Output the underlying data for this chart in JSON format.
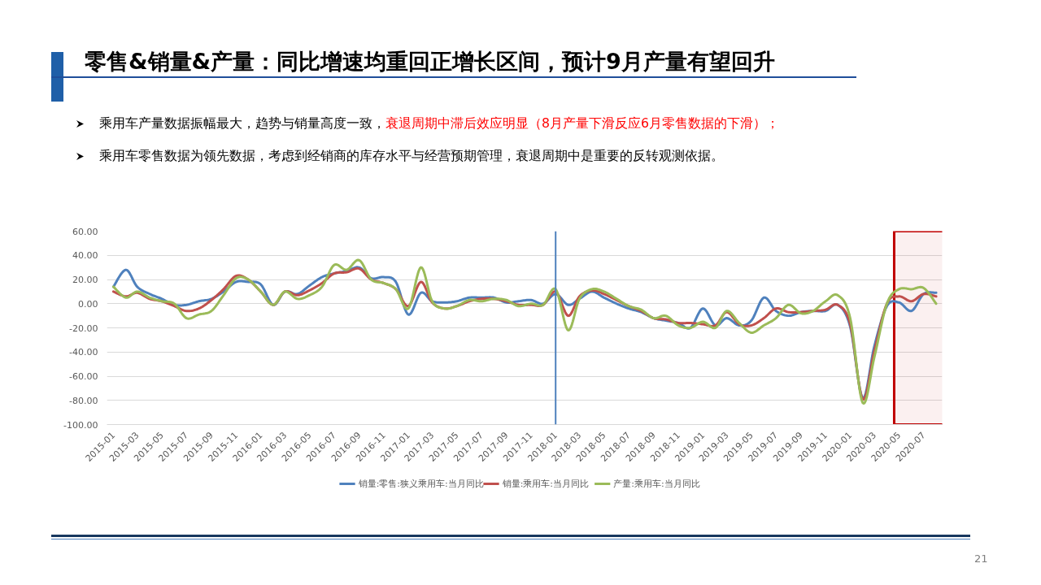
{
  "chart_data": {
    "type": "line",
    "title": "零售&销量&产量：同比增速均重回正增长区间，预计9月产量有望回升",
    "annotations": [
      "乘用车产量数据振幅最大，趋势与销量高度一致，",
      "衰退周期中滞后效应明显（8月产量下滑反应6月零售数据的下滑）；",
      "乘用车零售数据为领先数据，考虑到经销商的库存水平与经营预期管理，衰退周期中是重要的反转观测依据。",
      "21"
    ],
    "x": [
      "2015-01",
      "2015-02",
      "2015-03",
      "2015-04",
      "2015-05",
      "2015-06",
      "2015-07",
      "2015-08",
      "2015-09",
      "2015-10",
      "2015-11",
      "2015-12",
      "2016-01",
      "2016-02",
      "2016-03",
      "2016-04",
      "2016-05",
      "2016-06",
      "2016-07",
      "2016-08",
      "2016-09",
      "2016-10",
      "2016-11",
      "2016-12",
      "2017-01",
      "2017-02",
      "2017-03",
      "2017-04",
      "2017-05",
      "2017-06",
      "2017-07",
      "2017-08",
      "2017-09",
      "2017-10",
      "2017-11",
      "2017-12",
      "2018-01",
      "2018-02",
      "2018-03",
      "2018-04",
      "2018-05",
      "2018-06",
      "2018-07",
      "2018-08",
      "2018-09",
      "2018-10",
      "2018-11",
      "2018-12",
      "2019-01",
      "2019-02",
      "2019-03",
      "2019-04",
      "2019-05",
      "2019-06",
      "2019-07",
      "2019-08",
      "2019-09",
      "2019-10",
      "2019-11",
      "2019-12",
      "2020-01",
      "2020-02",
      "2020-03",
      "2020-04",
      "2020-05",
      "2020-06",
      "2020-07",
      "2020-08"
    ],
    "series": [
      {
        "name": "销量:零售:狭义乘用车:当月同比",
        "color": "#4f81bd",
        "values": [
          14,
          28,
          14,
          8,
          4,
          -1,
          -1,
          2,
          4,
          10,
          18,
          18,
          16,
          -1,
          10,
          8,
          15,
          22,
          25,
          27,
          30,
          21,
          22,
          18,
          -9,
          9,
          2,
          1,
          2,
          5,
          5,
          5,
          1,
          2,
          3,
          0,
          8,
          -1,
          4,
          10,
          5,
          0,
          -4,
          -7,
          -12,
          -14,
          -16,
          -20,
          -4,
          -18,
          -12,
          -18,
          -14,
          5,
          -6,
          -10,
          -7,
          -6,
          -6,
          -1,
          -19,
          -78,
          -35,
          -2,
          1,
          -6,
          8,
          9
        ]
      },
      {
        "name": "销量:乘用车:当月同比",
        "color": "#c0504d",
        "values": [
          10,
          6,
          9,
          4,
          2,
          -2,
          -6,
          -4,
          3,
          12,
          23,
          20,
          10,
          -1,
          10,
          7,
          11,
          17,
          25,
          26,
          29,
          20,
          17,
          12,
          -2,
          18,
          1,
          -4,
          -2,
          2,
          4,
          4,
          2,
          -1,
          -1,
          -1,
          10,
          -10,
          6,
          11,
          8,
          3,
          -2,
          -6,
          -12,
          -13,
          -16,
          -16,
          -17,
          -18,
          -7,
          -17,
          -18,
          -12,
          -4,
          -7,
          -7,
          -6,
          -5,
          -1,
          -17,
          -79,
          -39,
          0,
          6,
          2,
          8,
          6
        ]
      },
      {
        "name": "产量:乘用车:当月同比",
        "color": "#9bbb59",
        "values": [
          14,
          5,
          10,
          5,
          2,
          0,
          -12,
          -9,
          -6,
          7,
          21,
          20,
          10,
          -1,
          10,
          4,
          7,
          14,
          32,
          28,
          36,
          20,
          17,
          12,
          -4,
          30,
          2,
          -4,
          -2,
          3,
          2,
          4,
          3,
          -2,
          0,
          -1,
          12,
          -22,
          4,
          12,
          10,
          4,
          -2,
          -5,
          -12,
          -10,
          -18,
          -20,
          -15,
          -20,
          -6,
          -16,
          -24,
          -18,
          -12,
          -1,
          -8,
          -6,
          2,
          7,
          -12,
          -82,
          -44,
          0,
          12,
          12,
          13,
          0
        ]
      }
    ],
    "xlim": [
      "2014-12-16",
      "2020-08-16"
    ],
    "xticks": [
      "2015-01",
      "2015-03",
      "2015-05",
      "2015-07",
      "2015-09",
      "2015-11",
      "2016-01",
      "2016-03",
      "2016-05",
      "2016-07",
      "2016-09",
      "2016-11",
      "2017-01",
      "2017-03",
      "2017-05",
      "2017-07",
      "2017-09",
      "2017-11",
      "2018-01",
      "2018-03",
      "2018-05",
      "2018-07",
      "2018-09",
      "2018-11",
      "2019-01",
      "2019-03",
      "2019-05",
      "2019-07",
      "2019-09",
      "2019-11",
      "2020-01",
      "2020-03",
      "2020-05",
      "2020-07"
    ],
    "ylim": [
      -100,
      60
    ],
    "yticks": [
      {
        "value": -100,
        "label": "-100.00"
      },
      {
        "value": -80,
        "label": "-80.00"
      },
      {
        "value": -60,
        "label": "-60.00"
      },
      {
        "value": -40,
        "label": "-40.00"
      },
      {
        "value": -20,
        "label": "-20.00"
      },
      {
        "value": 0,
        "label": "0.00"
      },
      {
        "value": 20,
        "label": "20.00"
      },
      {
        "value": 40,
        "label": "40.00"
      },
      {
        "value": 60,
        "label": "60.00"
      }
    ],
    "ref_lines": [
      {
        "axis": "x",
        "value": "2018-01",
        "color": "#4f81bd"
      }
    ],
    "bands": [
      {
        "axis": "x",
        "from": "2020-04-19",
        "to": "2020-08-24",
        "color": "#c00000"
      }
    ],
    "grid": "y",
    "legend": "bottom",
    "line_style": "solid"
  }
}
